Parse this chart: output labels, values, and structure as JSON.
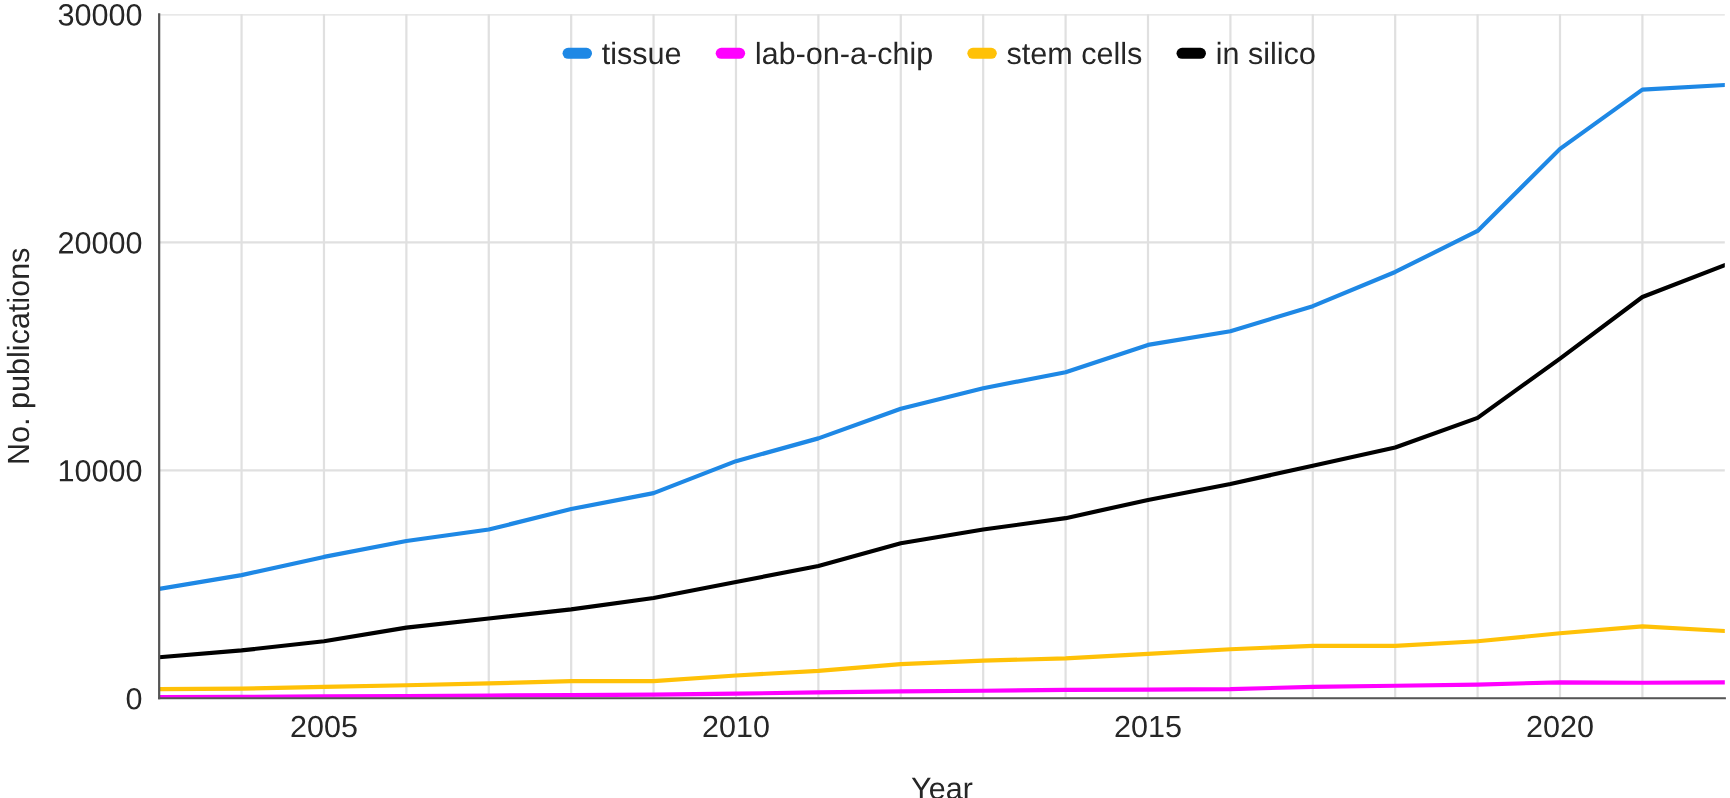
{
  "chart_data": {
    "type": "line",
    "xlabel": "Year",
    "ylabel": "No. publications",
    "x": [
      2003,
      2004,
      2005,
      2006,
      2007,
      2008,
      2009,
      2010,
      2011,
      2012,
      2013,
      2014,
      2015,
      2016,
      2017,
      2018,
      2019,
      2020,
      2021,
      2022
    ],
    "series": [
      {
        "name": "tissue",
        "color": "#1e88e5",
        "values": [
          4800,
          5400,
          6200,
          6900,
          7400,
          8300,
          9000,
          10400,
          11400,
          12700,
          13600,
          14300,
          15500,
          16100,
          17200,
          18700,
          20500,
          24100,
          26700,
          26900
        ]
      },
      {
        "name": "lab-on-a-chip",
        "color": "#ff00ff",
        "values": [
          50,
          60,
          80,
          100,
          120,
          140,
          160,
          200,
          260,
          300,
          330,
          370,
          380,
          400,
          500,
          550,
          600,
          700,
          680,
          700
        ]
      },
      {
        "name": "stem cells",
        "color": "#ffc107",
        "values": [
          400,
          420,
          500,
          570,
          650,
          750,
          750,
          1000,
          1200,
          1500,
          1650,
          1750,
          1950,
          2150,
          2300,
          2300,
          2500,
          2850,
          3150,
          2950
        ]
      },
      {
        "name": "in silico",
        "color": "#000000",
        "values": [
          1800,
          2100,
          2500,
          3100,
          3500,
          3900,
          4400,
          5100,
          5800,
          6800,
          7400,
          7900,
          8700,
          9400,
          10200,
          11000,
          12300,
          14900,
          17600,
          19000
        ]
      }
    ],
    "xlim": [
      2003,
      2022
    ],
    "xticks": [
      {
        "value": 2004,
        "label": null
      },
      2005,
      {
        "value": 2006,
        "label": null
      },
      {
        "value": 2007,
        "label": null
      },
      {
        "value": 2008,
        "label": null
      },
      {
        "value": 2009,
        "label": null
      },
      2010,
      {
        "value": 2011,
        "label": null
      },
      {
        "value": 2012,
        "label": null
      },
      {
        "value": 2013,
        "label": null
      },
      {
        "value": 2014,
        "label": null
      },
      2015,
      {
        "value": 2016,
        "label": null
      },
      {
        "value": 2017,
        "label": null
      },
      {
        "value": 2018,
        "label": null
      },
      {
        "value": 2019,
        "label": null
      },
      2020,
      {
        "value": 2021,
        "label": null
      }
    ],
    "ylim": [
      0,
      30000
    ],
    "yticks": [
      0,
      10000,
      20000,
      30000
    ],
    "grid": true,
    "legend": "top",
    "marker": "none",
    "line_style": "solid"
  }
}
